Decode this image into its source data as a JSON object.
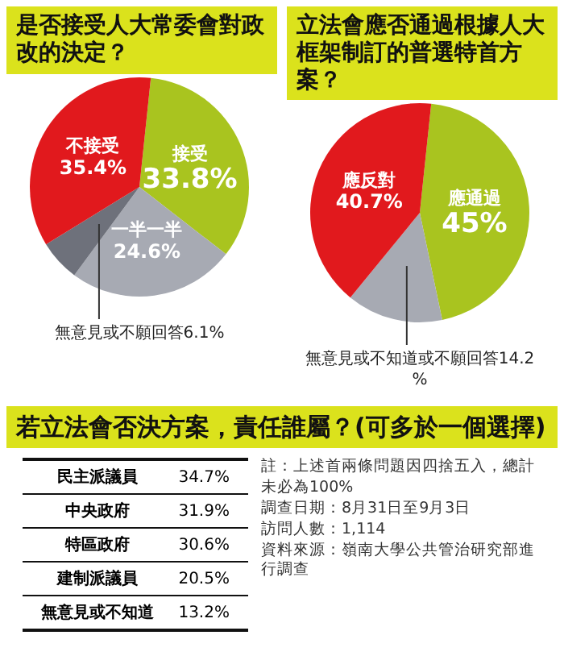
{
  "chart_data": [
    {
      "type": "pie",
      "title": "是否接受人大常委會對政改的決定？",
      "categories": [
        "接受",
        "一半一半",
        "無意見或不願回答",
        "不接受"
      ],
      "values": [
        33.8,
        24.6,
        6.1,
        35.4
      ],
      "value_labels": [
        "33.8%",
        "24.6%",
        "6.1%",
        "35.4%"
      ],
      "colors": [
        "#a9c41f",
        "#a7aab3",
        "#6e717b",
        "#e1191d"
      ],
      "legend": false
    },
    {
      "type": "pie",
      "title": "立法會應否通過根據人大框架制訂的普選特首方案？",
      "categories": [
        "應通過",
        "無意見或不知道或不願回答",
        "應反對"
      ],
      "values": [
        45,
        14.2,
        40.7
      ],
      "value_labels": [
        "45%",
        "14.2%",
        "40.7%"
      ],
      "colors": [
        "#a9c41f",
        "#a7aab3",
        "#e1191d"
      ],
      "legend": false
    },
    {
      "type": "other",
      "title": "若立法會否決方案，責任誰屬？(可多於一個選擇)",
      "categories": [
        "民主派議員",
        "中央政府",
        "特區政府",
        "建制派議員",
        "無意見或不知道"
      ],
      "value_labels": [
        "34.7%",
        "31.9%",
        "30.6%",
        "20.5%",
        "13.2%"
      ],
      "annotations": [
        "註：上述首兩條問題因四捨五入，總計未必為100%",
        "調查日期：8月31日至9月3日",
        "訪問人數：1,114",
        "資料來源：嶺南大學公共管治研究部進行調查"
      ]
    }
  ]
}
